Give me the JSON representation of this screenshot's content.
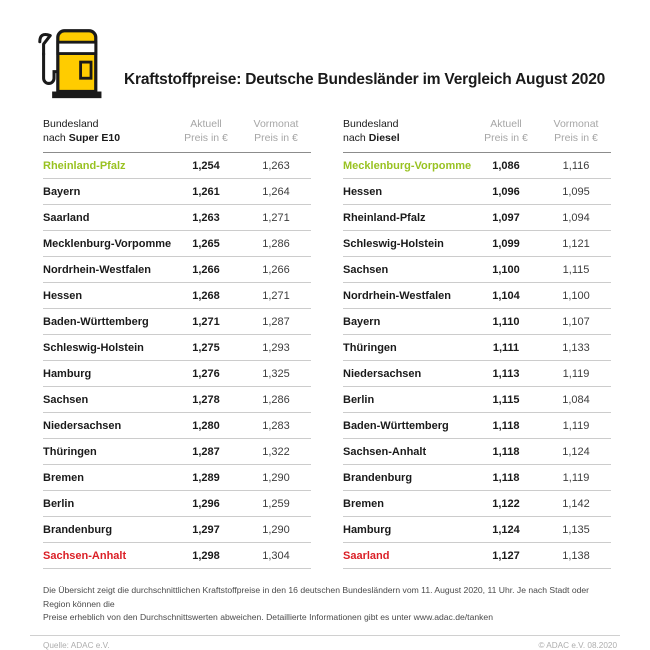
{
  "header": {
    "title": "Kraftstoffpreise: Deutsche Bundesländer im Vergleich August 2020"
  },
  "colors": {
    "brand_yellow": "#FFCC00",
    "highlight_green": "#99C221",
    "highlight_red": "#DB1F26"
  },
  "chart_data": [
    {
      "type": "table",
      "title": "Bundesland nach Super E10",
      "group_label": "Bundesland",
      "group_prefix": "nach",
      "fuel": "Super E10",
      "col_current": {
        "line1": "Aktuell",
        "line2": "Preis in €"
      },
      "col_previous": {
        "line1": "Vormonat",
        "line2": "Preis in €"
      },
      "rows": [
        {
          "state": "Rheinland-Pfalz",
          "current": "1,254",
          "previous": "1,263",
          "highlight": "best"
        },
        {
          "state": "Bayern",
          "current": "1,261",
          "previous": "1,264"
        },
        {
          "state": "Saarland",
          "current": "1,263",
          "previous": "1,271"
        },
        {
          "state": "Mecklenburg-Vorpommern",
          "current": "1,265",
          "previous": "1,286"
        },
        {
          "state": "Nordrhein-Westfalen",
          "current": "1,266",
          "previous": "1,266"
        },
        {
          "state": "Hessen",
          "current": "1,268",
          "previous": "1,271"
        },
        {
          "state": "Baden-Württemberg",
          "current": "1,271",
          "previous": "1,287"
        },
        {
          "state": "Schleswig-Holstein",
          "current": "1,275",
          "previous": "1,293"
        },
        {
          "state": "Hamburg",
          "current": "1,276",
          "previous": "1,325"
        },
        {
          "state": "Sachsen",
          "current": "1,278",
          "previous": "1,286"
        },
        {
          "state": "Niedersachsen",
          "current": "1,280",
          "previous": "1,283"
        },
        {
          "state": "Thüringen",
          "current": "1,287",
          "previous": "1,322"
        },
        {
          "state": "Bremen",
          "current": "1,289",
          "previous": "1,290"
        },
        {
          "state": "Berlin",
          "current": "1,296",
          "previous": "1,259"
        },
        {
          "state": "Brandenburg",
          "current": "1,297",
          "previous": "1,290"
        },
        {
          "state": "Sachsen-Anhalt",
          "current": "1,298",
          "previous": "1,304",
          "highlight": "worst"
        }
      ]
    },
    {
      "type": "table",
      "title": "Bundesland nach Diesel",
      "group_label": "Bundesland",
      "group_prefix": "nach",
      "fuel": "Diesel",
      "col_current": {
        "line1": "Aktuell",
        "line2": "Preis in €"
      },
      "col_previous": {
        "line1": "Vormonat",
        "line2": "Preis in €"
      },
      "rows": [
        {
          "state": "Mecklenburg-Vorpommern",
          "current": "1,086",
          "previous": "1,116",
          "highlight": "best"
        },
        {
          "state": "Hessen",
          "current": "1,096",
          "previous": "1,095"
        },
        {
          "state": "Rheinland-Pfalz",
          "current": "1,097",
          "previous": "1,094"
        },
        {
          "state": "Schleswig-Holstein",
          "current": "1,099",
          "previous": "1,121"
        },
        {
          "state": "Sachsen",
          "current": "1,100",
          "previous": "1,115"
        },
        {
          "state": "Nordrhein-Westfalen",
          "current": "1,104",
          "previous": "1,100"
        },
        {
          "state": "Bayern",
          "current": "1,110",
          "previous": "1,107"
        },
        {
          "state": "Thüringen",
          "current": "1,111",
          "previous": "1,133"
        },
        {
          "state": "Niedersachsen",
          "current": "1,113",
          "previous": "1,119"
        },
        {
          "state": "Berlin",
          "current": "1,115",
          "previous": "1,084"
        },
        {
          "state": "Baden-Württemberg",
          "current": "1,118",
          "previous": "1,119"
        },
        {
          "state": "Sachsen-Anhalt",
          "current": "1,118",
          "previous": "1,124"
        },
        {
          "state": "Brandenburg",
          "current": "1,118",
          "previous": "1,119"
        },
        {
          "state": "Bremen",
          "current": "1,122",
          "previous": "1,142"
        },
        {
          "state": "Hamburg",
          "current": "1,124",
          "previous": "1,135"
        },
        {
          "state": "Saarland",
          "current": "1,127",
          "previous": "1,138",
          "highlight": "worst"
        }
      ]
    }
  ],
  "footnote": {
    "line1": "Die Übersicht zeigt die durchschnittlichen Kraftstoffpreise in den 16 deutschen Bundesländern vom 11. August 2020, 11 Uhr.  Je nach Stadt oder Region können die",
    "line2": "Preise erheblich von den Durchschnittswerten abweichen. Detaillierte Informationen gibt es unter www.adac.de/tanken"
  },
  "footer": {
    "source": "Quelle: ADAC e.V.",
    "copyright": "© ADAC e.V. 08.2020"
  }
}
